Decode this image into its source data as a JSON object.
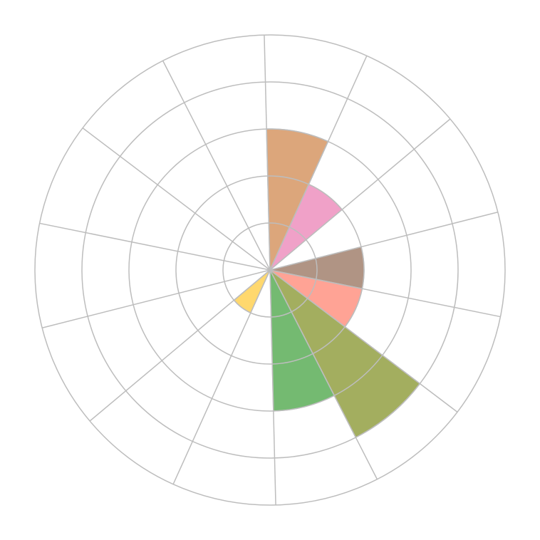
{
  "chart_data": {
    "type": "barpolar",
    "title": "",
    "sectors": 14,
    "radial_range": [
      0,
      5
    ],
    "radial_gridlines": [
      1,
      2,
      3,
      4,
      5
    ],
    "angular_gridlines": true,
    "tick_labels_visible": false,
    "direction": "clockwise",
    "values": [
      3,
      2,
      0,
      2,
      2,
      4,
      3,
      0,
      1,
      0,
      0,
      0,
      0,
      0
    ],
    "colors": [
      "#dca67b",
      "#f0a1c8",
      null,
      "#b09484",
      "#ffa395",
      "#a3ae5f",
      "#74ba71",
      null,
      "#ffd86e",
      null,
      null,
      null,
      null,
      null
    ],
    "grid_color": "#bdbdbd"
  }
}
